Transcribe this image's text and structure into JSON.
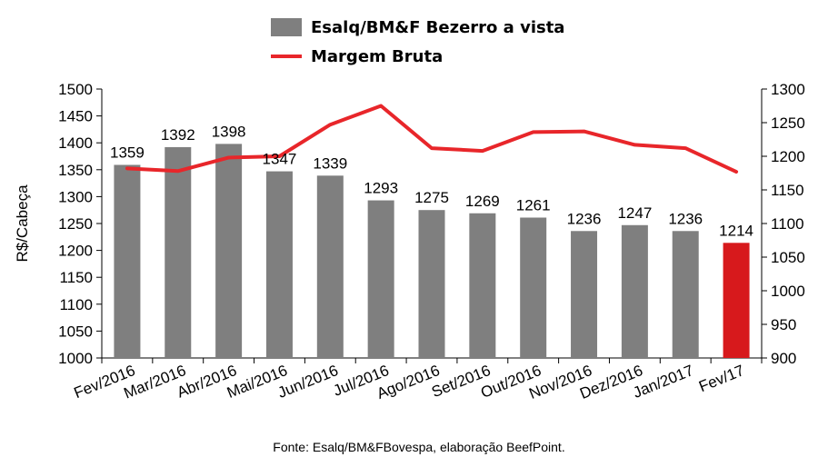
{
  "chart_data": {
    "type": "bar+line",
    "categories": [
      "Fev/2016",
      "Mar/2016",
      "Abr/2016",
      "Mai/2016",
      "Jun/2016",
      "Jul/2016",
      "Ago/2016",
      "Set/2016",
      "Out/2016",
      "Nov/2016",
      "Dez/2016",
      "Jan/2017",
      "Fev/17"
    ],
    "series": [
      {
        "name": "Esalq/BM&F Bezerro a vista",
        "type": "bar",
        "axis": "left",
        "values": [
          1359,
          1392,
          1398,
          1347,
          1339,
          1293,
          1275,
          1269,
          1261,
          1236,
          1247,
          1236,
          1214
        ],
        "data_labels": [
          "1359",
          "1392",
          "1398",
          "1347",
          "1339",
          "1293",
          "1275",
          "1269",
          "1261",
          "1236",
          "1247",
          "1236",
          "1214"
        ],
        "color": "#7f7f7f",
        "highlight_last_color": "#d7191c"
      },
      {
        "name": "Margem Bruta",
        "type": "line",
        "axis": "right",
        "values": [
          1182,
          1178,
          1198,
          1200,
          1247,
          1275,
          1212,
          1208,
          1236,
          1237,
          1217,
          1212,
          1177
        ],
        "color": "#e8262a"
      }
    ],
    "ylabel": "R$/Cabeça",
    "ylim": [
      1000,
      1500
    ],
    "yticks": [
      "1500",
      "1450",
      "1400",
      "1350",
      "1300",
      "1250",
      "1200",
      "1150",
      "1100",
      "1050",
      "1000"
    ],
    "y2lim": [
      900,
      1300
    ],
    "y2ticks": [
      "1300",
      "1250",
      "1200",
      "1150",
      "1100",
      "1050",
      "1000",
      "950",
      "900"
    ],
    "legend_position": "top-center",
    "grid": false
  },
  "source_note": "Fonte: Esalq/BM&FBovespa, elaboração BeefPoint."
}
